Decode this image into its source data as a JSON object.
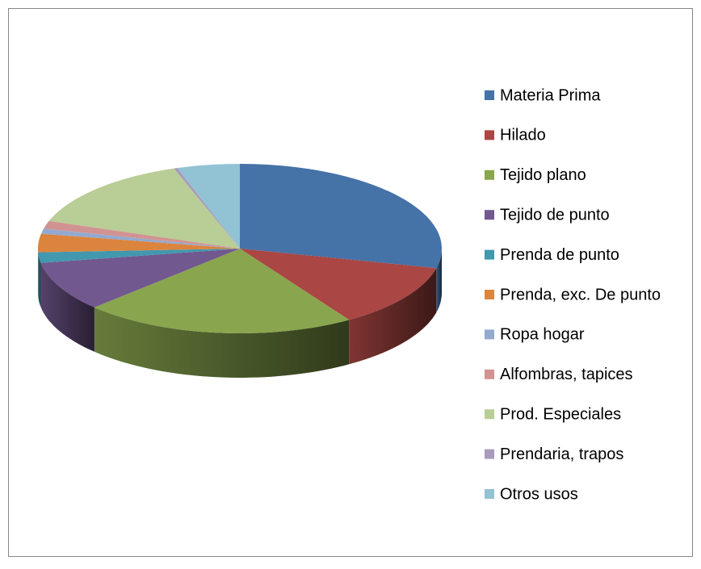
{
  "chart_data": {
    "type": "pie3d",
    "categories": [
      "Materia Prima",
      "Hilado",
      "Tejido plano",
      "Tejido de punto",
      "Prenda de punto",
      "Prenda, exc. De punto",
      "Ropa hogar",
      "Alfombras, tapices",
      "Prod. Especiales",
      "Prendaria, trapos",
      "Otros usos"
    ],
    "values": [
      28.7,
      12.2,
      21.9,
      9.5,
      2,
      3.5,
      1,
      1.5,
      14.4,
      0.3,
      5
    ],
    "colors": [
      "#4572A7",
      "#AA4643",
      "#89A54E",
      "#71588F",
      "#4198AF",
      "#DB843D",
      "#93A9CF",
      "#D19392",
      "#B9CD96",
      "#A99BBD",
      "#92C3D4"
    ],
    "legend": "right"
  }
}
